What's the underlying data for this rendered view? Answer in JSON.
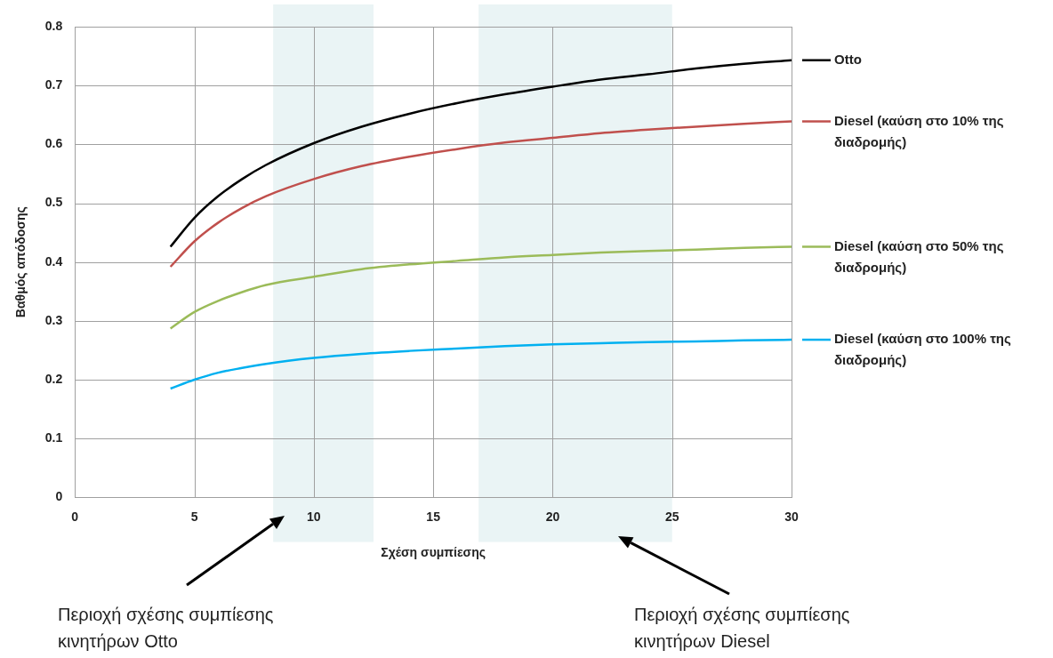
{
  "chart_data": {
    "type": "line",
    "xlabel": "Σχέση συμπίεσης",
    "ylabel": "Βαθμός απόδοσης",
    "x": [
      4,
      5,
      6,
      7,
      8,
      10,
      12,
      14,
      16,
      18,
      20,
      22,
      24,
      26,
      28,
      30
    ],
    "series": [
      {
        "name": "Otto",
        "color": "#000000",
        "values": [
          0.426,
          0.475,
          0.512,
          0.541,
          0.565,
          0.602,
          0.63,
          0.652,
          0.67,
          0.685,
          0.698,
          0.71,
          0.719,
          0.729,
          0.737,
          0.743
        ]
      },
      {
        "name": "Diesel (καύση στο 10% της διαδρομής)",
        "color": "#c0504d",
        "values": [
          0.392,
          0.435,
          0.467,
          0.492,
          0.512,
          0.541,
          0.563,
          0.579,
          0.592,
          0.603,
          0.611,
          0.619,
          0.625,
          0.63,
          0.635,
          0.639
        ]
      },
      {
        "name": "Diesel (καύση στο 50% της διαδρομής)",
        "color": "#9bbb59",
        "values": [
          0.287,
          0.315,
          0.334,
          0.349,
          0.361,
          0.375,
          0.388,
          0.396,
          0.402,
          0.408,
          0.412,
          0.416,
          0.419,
          0.421,
          0.424,
          0.426
        ]
      },
      {
        "name": "Diesel (καύση στο 100% της διαδρομής)",
        "color": "#00b0f0",
        "values": [
          0.185,
          0.2,
          0.212,
          0.22,
          0.227,
          0.237,
          0.244,
          0.249,
          0.253,
          0.257,
          0.26,
          0.262,
          0.264,
          0.265,
          0.267,
          0.268
        ]
      }
    ],
    "xlim": [
      0,
      30
    ],
    "xticks": [
      0,
      5,
      10,
      15,
      20,
      25,
      30
    ],
    "ylim": [
      0,
      0.8
    ],
    "yticks": [
      0,
      0.1,
      0.2,
      0.3,
      0.4,
      0.5,
      0.6,
      0.7,
      0.8
    ],
    "grid": true,
    "legend": "right",
    "marker": "none",
    "line_style": "solid",
    "bands": [
      {
        "axis": "x",
        "from": 8.3,
        "to": 12.5,
        "color": "#eaf4f5"
      },
      {
        "axis": "x",
        "from": 16.9,
        "to": 25,
        "color": "#eaf4f5"
      }
    ],
    "annotations": [
      "Περιοχή σχέσης συμπίεσης κινητήρων Otto",
      "Περιοχή σχέσης συμπίεσης κινητήρων Diesel"
    ]
  }
}
